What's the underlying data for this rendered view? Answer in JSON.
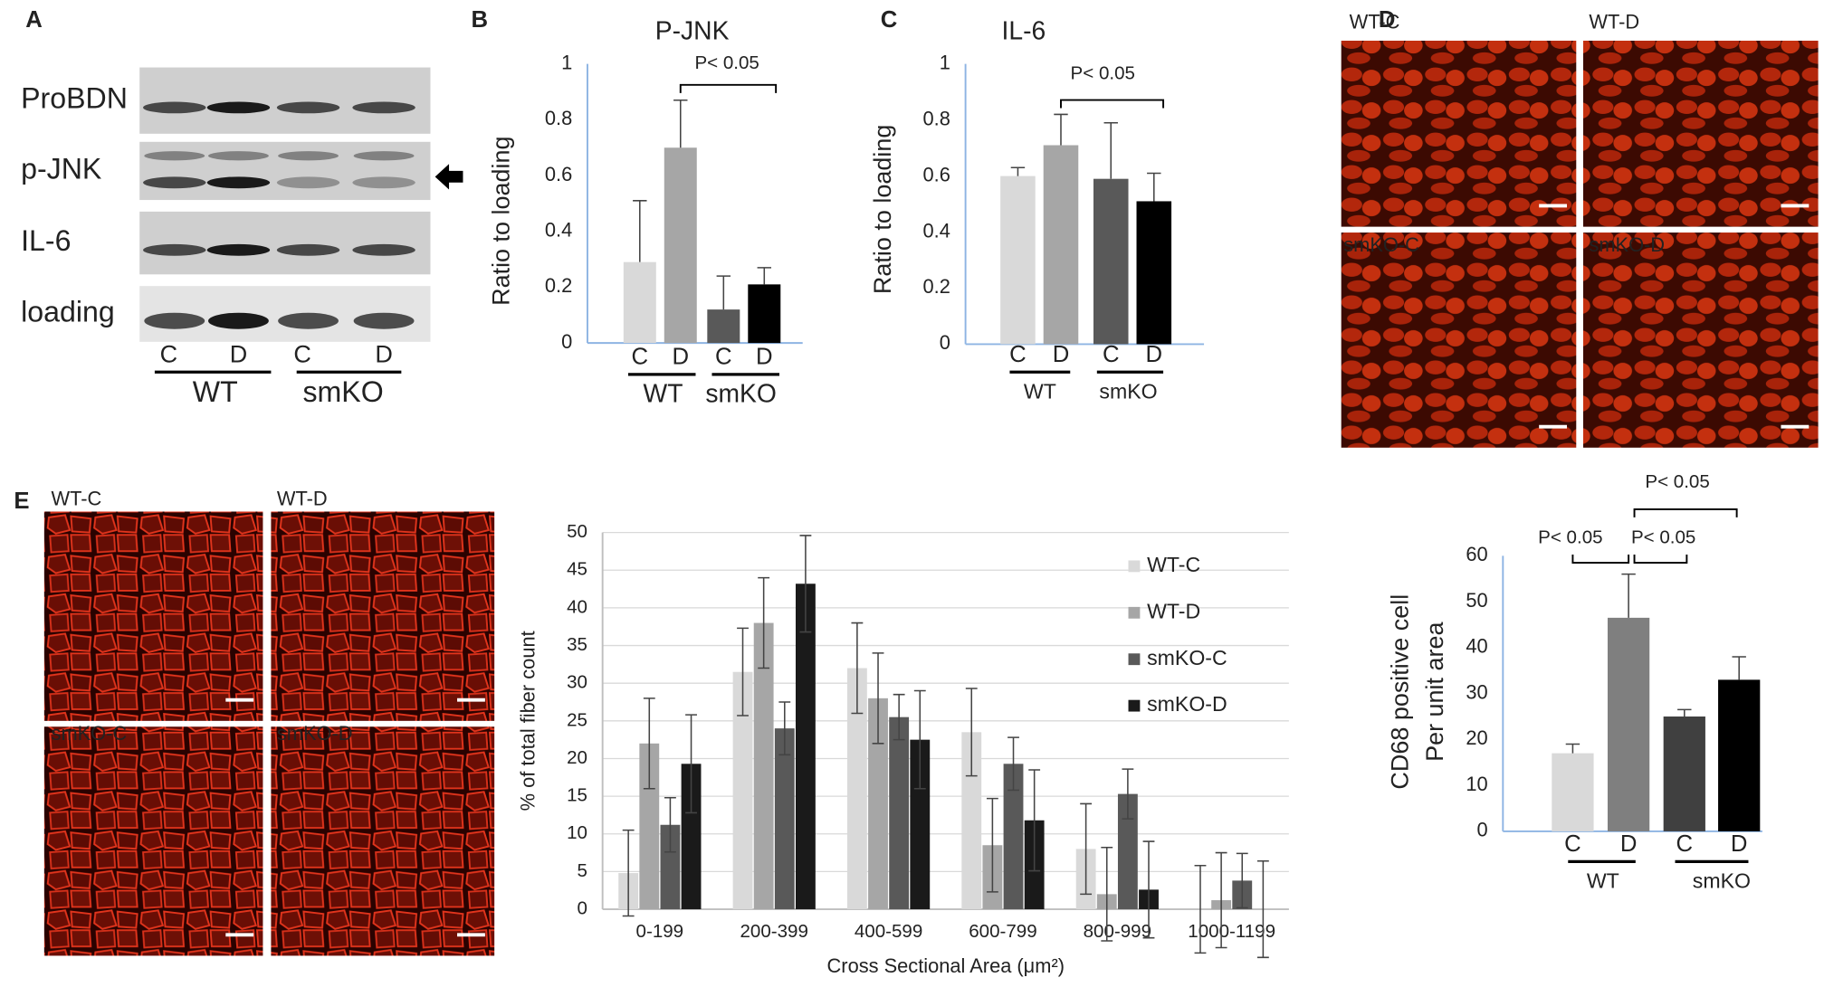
{
  "panel_labels": [
    "A",
    "B",
    "C",
    "D",
    "E"
  ],
  "blot": {
    "rows": [
      "ProBDN",
      "p-JNK",
      "IL-6",
      "loading"
    ],
    "lanes": [
      "C",
      "D",
      "C",
      "D"
    ],
    "groups": [
      "WT",
      "smKO"
    ]
  },
  "micrographs_d": [
    "WT-C",
    "WT-D",
    "smKO-C",
    "smKO-D"
  ],
  "micrographs_e": [
    "WT-C",
    "WT-D",
    "smKO-C",
    "smKO-D"
  ],
  "chart_data": [
    {
      "type": "bar",
      "title": "P-JNK",
      "y_label": [
        "Ratio to loading"
      ],
      "categories": [
        "C",
        "D",
        "C",
        "D"
      ],
      "groups": [
        "WT",
        "smKO"
      ],
      "values": [
        0.29,
        0.7,
        0.12,
        0.21
      ],
      "errors": [
        0.22,
        0.17,
        0.12,
        0.06
      ],
      "colors": [
        "#d9d9d9",
        "#a6a6a6",
        "#595959",
        "#000000"
      ],
      "ylim": [
        0,
        1
      ],
      "yticks": [
        0,
        0.2,
        0.4,
        0.6,
        0.8,
        1
      ],
      "annotations": [
        "P< 0.05"
      ],
      "error_bars": "up",
      "grid": false
    },
    {
      "type": "bar",
      "title": "IL-6",
      "y_label": [
        "Ratio to loading"
      ],
      "categories": [
        "C",
        "D",
        "C",
        "D"
      ],
      "groups": [
        "WT",
        "smKO"
      ],
      "values": [
        0.6,
        0.71,
        0.59,
        0.51
      ],
      "errors": [
        0.03,
        0.11,
        0.2,
        0.1
      ],
      "colors": [
        "#d9d9d9",
        "#a6a6a6",
        "#595959",
        "#000000"
      ],
      "ylim": [
        0,
        1
      ],
      "yticks": [
        0,
        0.2,
        0.4,
        0.6,
        0.8,
        1
      ],
      "annotations": [
        "P< 0.05"
      ],
      "error_bars": "up",
      "grid": false
    },
    {
      "type": "bar",
      "y_label": [
        "CD68 positive cell",
        "Per unit area"
      ],
      "categories": [
        "C",
        "D",
        "C",
        "D"
      ],
      "groups": [
        "WT",
        "smKO"
      ],
      "values": [
        17,
        46.5,
        25,
        33
      ],
      "errors": [
        2,
        9.5,
        1.5,
        5
      ],
      "colors": [
        "#d9d9d9",
        "#7f7f7f",
        "#404040",
        "#000000"
      ],
      "ylim": [
        0,
        60
      ],
      "yticks": [
        0,
        10,
        20,
        30,
        40,
        50,
        60
      ],
      "annotations": [
        "P< 0.05",
        "P< 0.05",
        "P< 0.05"
      ],
      "error_bars": "up",
      "grid": false
    },
    {
      "type": "bar",
      "x_label": "Cross Sectional Area (μm²)",
      "y_label": [
        "% of total fiber count"
      ],
      "categories": [
        "0-199",
        "200-399",
        "400-599",
        "600-799",
        "800-999",
        "1000-1199"
      ],
      "series": [
        {
          "name": "WT-C",
          "color": "#d9d9d9",
          "values": [
            4.8,
            31.5,
            32,
            23.5,
            8,
            0
          ],
          "errors": [
            5.7,
            5.8,
            6,
            5.8,
            6,
            5.8
          ]
        },
        {
          "name": "WT-D",
          "color": "#a6a6a6",
          "values": [
            22,
            38,
            28,
            8.5,
            2,
            1.2
          ],
          "errors": [
            6,
            6,
            6,
            6.2,
            6.2,
            6.3
          ]
        },
        {
          "name": "smKO-C",
          "color": "#595959",
          "values": [
            11.2,
            24,
            25.5,
            19.3,
            15.3,
            3.8
          ],
          "errors": [
            3.6,
            3.5,
            3,
            3.5,
            3.3,
            3.6
          ]
        },
        {
          "name": "smKO-D",
          "color": "#1a1a1a",
          "values": [
            19.3,
            43.2,
            22.5,
            11.8,
            2.6,
            0
          ],
          "errors": [
            6.5,
            6.4,
            6.5,
            6.7,
            6.4,
            6.4
          ]
        }
      ],
      "ylim": [
        0,
        50
      ],
      "yticks": [
        0,
        5,
        10,
        15,
        20,
        25,
        30,
        35,
        40,
        45,
        50
      ],
      "error_bars": "both",
      "grid": true,
      "legend": "upper right"
    }
  ]
}
